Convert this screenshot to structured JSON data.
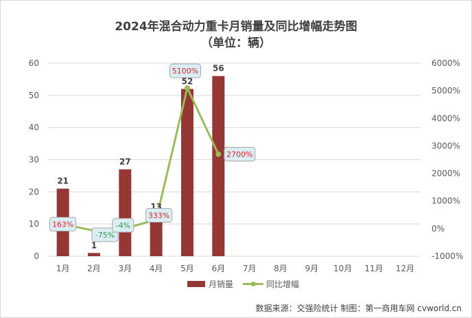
{
  "chart_data": {
    "type": "bar",
    "title": "2024年混合动力重卡月销量及同比增幅走势图",
    "subtitle": "（单位：辆）",
    "categories": [
      "1月",
      "2月",
      "3月",
      "4月",
      "5月",
      "6月",
      "7月",
      "8月",
      "9月",
      "10月",
      "11月",
      "12月"
    ],
    "series": [
      {
        "name": "月销量",
        "type": "bar",
        "axis": "left",
        "values": [
          21,
          1,
          27,
          13,
          52,
          56,
          null,
          null,
          null,
          null,
          null,
          null
        ]
      },
      {
        "name": "同比增幅",
        "type": "line",
        "axis": "right",
        "values": [
          163,
          -75,
          -4,
          333,
          5100,
          2700,
          null,
          null,
          null,
          null,
          null,
          null
        ]
      }
    ],
    "yleft": {
      "min": 0,
      "max": 60,
      "ticks": [
        "0",
        "10",
        "20",
        "30",
        "40",
        "50",
        "60"
      ]
    },
    "yright": {
      "min": -1000,
      "max": 6000,
      "ticks": [
        "-1000%",
        "0%",
        "1000%",
        "2000%",
        "3000%",
        "4000%",
        "5000%",
        "6000%"
      ]
    },
    "bar_labels": [
      "21",
      "1",
      "27",
      "13",
      "52",
      "56"
    ],
    "line_labels": [
      "163%",
      "-75%",
      "-4%",
      "333%",
      "5100%",
      "2700%"
    ],
    "grid": true,
    "legend_position": "bottom",
    "colors": {
      "bar": "#953735",
      "line": "#9BBB59",
      "grid": "#d9d9d9",
      "callout_fill": "#DAEEF3",
      "callout_border": "#A6A6A6",
      "positive_label": "#E4212A",
      "negative_label": "#2E9E48"
    }
  },
  "source_note": "数据来源：交强险统计  制图：第一商用车网 cvworld.cn"
}
